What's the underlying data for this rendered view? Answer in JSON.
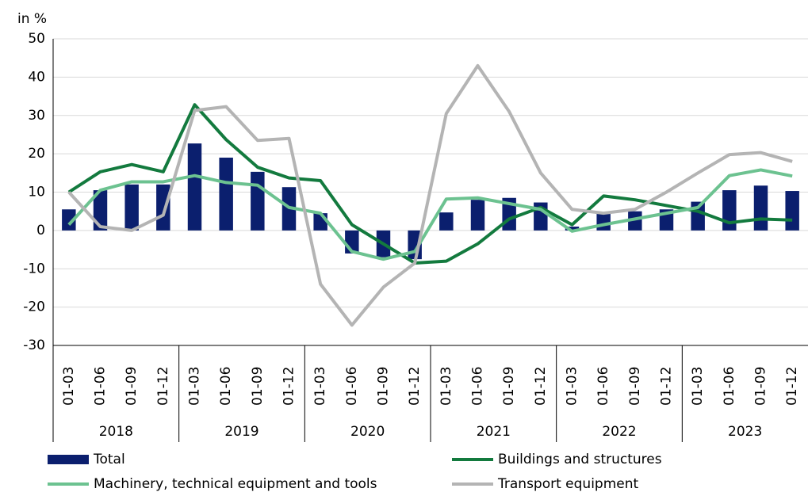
{
  "chart_data": {
    "type": "bar",
    "y_label": "in %",
    "categories": [
      "01-03",
      "01-06",
      "01-09",
      "01-12",
      "01-03",
      "01-06",
      "01-09",
      "01-12",
      "01-03",
      "01-06",
      "01-09",
      "01-12",
      "01-03",
      "01-06",
      "01-09",
      "01-12",
      "01-03",
      "01-06",
      "01-09",
      "01-12",
      "01-03",
      "01-06",
      "01-09",
      "01-12"
    ],
    "years": [
      "2018",
      "2019",
      "2020",
      "2021",
      "2022",
      "2023"
    ],
    "series": [
      {
        "name": "Total",
        "type": "bar",
        "color": "#0b1f6e",
        "values": [
          5.5,
          10.5,
          12,
          12,
          22.7,
          19,
          15.3,
          11.3,
          4.5,
          -6,
          -7,
          -7.5,
          4.7,
          8,
          8.5,
          7.3,
          1,
          4.8,
          5,
          5.5,
          7.5,
          10.5,
          11.7,
          10.3
        ]
      },
      {
        "name": "Buildings and structures",
        "type": "line",
        "color": "#137a3e",
        "values": [
          10,
          15.3,
          17.2,
          15.3,
          32.8,
          23.7,
          16.5,
          13.7,
          13,
          1.5,
          -3.5,
          -8.5,
          -8,
          -3.5,
          3,
          6,
          1.5,
          9,
          8,
          6.5,
          5,
          2,
          3,
          2.7
        ]
      },
      {
        "name": "Machinery, technical equipment and tools",
        "type": "line",
        "color": "#6cc290",
        "values": [
          1.5,
          10.5,
          12.7,
          12.7,
          14.3,
          12.5,
          11.8,
          6,
          4.5,
          -5.5,
          -7.5,
          -5.5,
          8.2,
          8.5,
          7,
          5.5,
          -0.2,
          1.5,
          3,
          4.5,
          6,
          14.3,
          15.8,
          14.2
        ]
      },
      {
        "name": "Transport equipment",
        "type": "line",
        "color": "#b4b4b4",
        "values": [
          10,
          1,
          0,
          4,
          31.3,
          32.3,
          23.5,
          24,
          -14,
          -24.7,
          -14.8,
          -8.5,
          30.5,
          43,
          31,
          15,
          5.5,
          4.5,
          5.5,
          10,
          15,
          19.8,
          20.3,
          18
        ]
      }
    ],
    "ylim": [
      -30,
      50
    ],
    "yticks": [
      -30,
      -20,
      -10,
      0,
      10,
      20,
      30,
      40,
      50
    ],
    "grid": true
  }
}
